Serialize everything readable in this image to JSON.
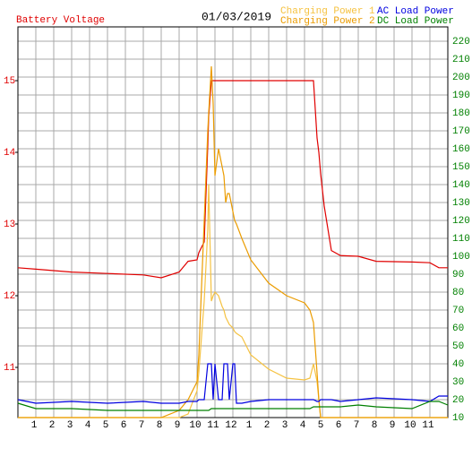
{
  "chart_data": {
    "type": "line",
    "title": "01/03/2019",
    "x": [
      0,
      1,
      3,
      5,
      7,
      8,
      9,
      9.5,
      10,
      10.1,
      10.4,
      10.6,
      10.65,
      10.8,
      10.9,
      11,
      11.2,
      11.4,
      11.5,
      11.6,
      11.7,
      11.8,
      12,
      12.1,
      12.2,
      12.5,
      13,
      14,
      15,
      16,
      16.3,
      16.5,
      16.7,
      16.8,
      16.9,
      17.1,
      17.5,
      18,
      19,
      20,
      22,
      23,
      23.5,
      24
    ],
    "xlim": [
      0,
      24
    ],
    "xticks": [
      1,
      2,
      3,
      4,
      5,
      6,
      7,
      8,
      9,
      10,
      11,
      12,
      {
        "value": 13,
        "label": "1"
      },
      {
        "value": 14,
        "label": "2"
      },
      {
        "value": 15,
        "label": "3"
      },
      {
        "value": 16,
        "label": "4"
      },
      {
        "value": 17,
        "label": "5"
      },
      {
        "value": 18,
        "label": "6"
      },
      {
        "value": 19,
        "label": "7"
      },
      {
        "value": 20,
        "label": "8"
      },
      {
        "value": 21,
        "label": "9"
      },
      {
        "value": 22,
        "label": "10"
      },
      {
        "value": 23,
        "label": "11"
      }
    ],
    "ylim": [
      10.3,
      15.75
    ],
    "yticks": [
      11,
      12,
      13,
      14,
      15
    ],
    "y2lim": [
      10,
      228
    ],
    "y2ticks": [
      10,
      20,
      30,
      40,
      50,
      60,
      70,
      80,
      90,
      100,
      110,
      120,
      130,
      140,
      150,
      160,
      170,
      180,
      190,
      200,
      210,
      220
    ],
    "grid": true,
    "series": [
      {
        "name": "Battery Voltage",
        "color": "#e00000",
        "values": [
          12.39,
          12.37,
          12.33,
          12.31,
          12.29,
          12.25,
          12.33,
          12.48,
          12.5,
          12.6,
          12.75,
          14.1,
          14.5,
          15,
          15,
          15,
          15,
          15,
          15,
          15,
          15,
          15,
          15,
          15,
          15,
          15,
          15,
          15,
          15,
          15,
          15,
          15,
          14.2,
          14.0,
          13.7,
          13.25,
          12.63,
          12.56,
          12.55,
          12.48,
          12.47,
          12.46,
          12.39,
          12.39
        ]
      },
      {
        "name": "Charging Power 1",
        "color": "#f5c242",
        "axis": "y2",
        "values": [
          10,
          10,
          10,
          10,
          10,
          10,
          10,
          12,
          25,
          35,
          75,
          115,
          140,
          75,
          78,
          80,
          78,
          72,
          70,
          66,
          64,
          62,
          60,
          58,
          57,
          55,
          45,
          37,
          32,
          31,
          32,
          40,
          30,
          20,
          10,
          10,
          10,
          10,
          10,
          10,
          10,
          10,
          10,
          10
        ]
      },
      {
        "name": "Charging Power 2",
        "color": "#eb9c00",
        "axis": "y2",
        "values": [
          10,
          10,
          10,
          10,
          10,
          10,
          14,
          20,
          30,
          45,
          120,
          170,
          180,
          206,
          185,
          145,
          160,
          150,
          145,
          130,
          135,
          135,
          125,
          120,
          118,
          110,
          98,
          85,
          78,
          74,
          70,
          63,
          35,
          20,
          10,
          10,
          10,
          10,
          10,
          10,
          10,
          10,
          10,
          10
        ]
      },
      {
        "name": "AC Load Power",
        "color": "#0000e0",
        "axis": "y2",
        "values": [
          20,
          18,
          19,
          18,
          19,
          18,
          18,
          19,
          19,
          20,
          20,
          40,
          40,
          40,
          20,
          40,
          20,
          20,
          40,
          40,
          40,
          20,
          40,
          40,
          18,
          18,
          19,
          20,
          20,
          20,
          20,
          20,
          19,
          19,
          20,
          20,
          20,
          19,
          20,
          21,
          20,
          19,
          22,
          22
        ]
      },
      {
        "name": "DC Load Power",
        "color": "#008000",
        "axis": "y2",
        "values": [
          18,
          15,
          15,
          14,
          14,
          14,
          14,
          14,
          14,
          14,
          14,
          14,
          14,
          15,
          15,
          15,
          15,
          15,
          15,
          15,
          15,
          15,
          15,
          15,
          15,
          15,
          15,
          15,
          15,
          15,
          15,
          16,
          16,
          16,
          16,
          16,
          16,
          16,
          17,
          16,
          15,
          19,
          19,
          17
        ]
      }
    ]
  }
}
